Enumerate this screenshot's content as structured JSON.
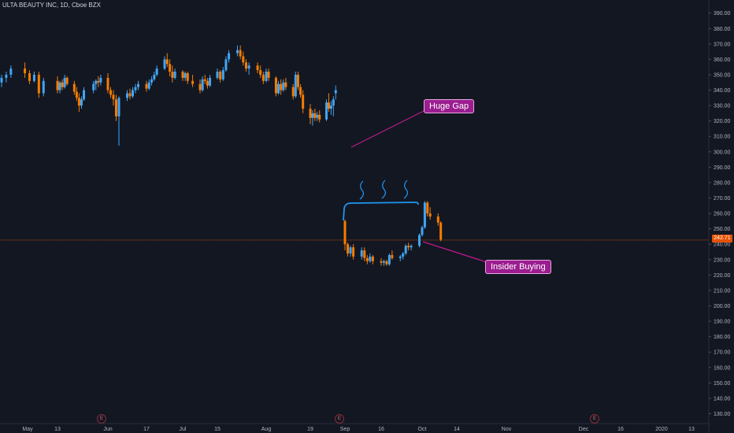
{
  "header": {
    "symbol_title": "ULTA BEAUTY INC, 1D, Cboe BZX"
  },
  "price_scale": {
    "current_price_label": "242.71",
    "current_price_color": "#e65100"
  },
  "annotations": {
    "huge_gap_label": "Huge Gap",
    "insider_buying_label": "Insider Buying",
    "callout_color": "#9b1d8f",
    "earnings_marker_label": "E"
  },
  "colors": {
    "background": "#131722",
    "up_candle": "#42a5f5",
    "down_candle": "#f57c00",
    "axis_text": "#b2b5be",
    "price_line": "#e65100",
    "drawing": "#2196f3",
    "annotation_line": "#c2188f"
  },
  "chart_data": {
    "type": "candlestick",
    "title": "ULTA BEAUTY INC, 1D, Cboe BZX",
    "y_axis": {
      "position": "right",
      "ylim": [
        125,
        393
      ],
      "ticks": [
        390,
        380,
        370,
        360,
        350,
        340,
        330,
        320,
        310,
        300,
        290,
        280,
        270,
        260,
        250,
        240,
        230,
        220,
        210,
        200,
        190,
        180,
        170,
        160,
        150,
        140,
        130
      ]
    },
    "x_axis": {
      "ticks": [
        "May",
        "13",
        "Jun",
        "17",
        "Jul",
        "15",
        "Aug",
        "19",
        "Sep",
        "16",
        "Oct",
        "14",
        "Nov",
        "Dec",
        "16",
        "2020",
        "13"
      ]
    },
    "current_price": 242.71,
    "earnings_dates": [
      "2019-05-30",
      "2019-08-29",
      "2019-12-05"
    ],
    "candles": [
      {
        "date": "2019-05-01",
        "o": 345,
        "h": 350,
        "l": 342,
        "c": 348
      },
      {
        "date": "2019-05-02",
        "o": 348,
        "h": 352,
        "l": 345,
        "c": 350
      },
      {
        "date": "2019-05-03",
        "o": 350,
        "h": 356,
        "l": 348,
        "c": 354
      },
      {
        "date": "2019-05-06",
        "o": 354,
        "h": 358,
        "l": 348,
        "c": 351
      },
      {
        "date": "2019-05-07",
        "o": 351,
        "h": 353,
        "l": 344,
        "c": 346
      },
      {
        "date": "2019-05-08",
        "o": 346,
        "h": 352,
        "l": 345,
        "c": 350
      },
      {
        "date": "2019-05-09",
        "o": 350,
        "h": 352,
        "l": 335,
        "c": 338
      },
      {
        "date": "2019-05-10",
        "o": 338,
        "h": 348,
        "l": 336,
        "c": 346
      },
      {
        "date": "2019-05-13",
        "o": 346,
        "h": 349,
        "l": 338,
        "c": 340
      },
      {
        "date": "2019-05-14",
        "o": 340,
        "h": 346,
        "l": 338,
        "c": 345
      },
      {
        "date": "2019-05-15",
        "o": 345,
        "h": 347,
        "l": 340,
        "c": 342
      },
      {
        "date": "2019-05-16",
        "o": 342,
        "h": 350,
        "l": 341,
        "c": 348
      },
      {
        "date": "2019-05-17",
        "o": 348,
        "h": 349,
        "l": 343,
        "c": 344
      },
      {
        "date": "2019-05-20",
        "o": 344,
        "h": 346,
        "l": 337,
        "c": 339
      },
      {
        "date": "2019-05-21",
        "o": 339,
        "h": 342,
        "l": 333,
        "c": 335
      },
      {
        "date": "2019-05-22",
        "o": 335,
        "h": 338,
        "l": 326,
        "c": 330
      },
      {
        "date": "2019-05-23",
        "o": 330,
        "h": 336,
        "l": 328,
        "c": 334
      },
      {
        "date": "2019-05-24",
        "o": 334,
        "h": 342,
        "l": 333,
        "c": 340
      },
      {
        "date": "2019-05-28",
        "o": 340,
        "h": 346,
        "l": 338,
        "c": 344
      },
      {
        "date": "2019-05-29",
        "o": 344,
        "h": 347,
        "l": 340,
        "c": 346
      },
      {
        "date": "2019-05-30",
        "o": 346,
        "h": 349,
        "l": 342,
        "c": 345
      },
      {
        "date": "2019-05-31",
        "o": 345,
        "h": 350,
        "l": 343,
        "c": 348
      },
      {
        "date": "2019-06-03",
        "o": 348,
        "h": 351,
        "l": 338,
        "c": 340
      },
      {
        "date": "2019-06-04",
        "o": 340,
        "h": 342,
        "l": 335,
        "c": 337
      },
      {
        "date": "2019-06-05",
        "o": 337,
        "h": 340,
        "l": 330,
        "c": 334
      },
      {
        "date": "2019-06-06",
        "o": 334,
        "h": 337,
        "l": 320,
        "c": 323
      },
      {
        "date": "2019-06-07",
        "o": 323,
        "h": 336,
        "l": 304,
        "c": 335
      },
      {
        "date": "2019-06-10",
        "o": 335,
        "h": 340,
        "l": 333,
        "c": 338
      },
      {
        "date": "2019-06-11",
        "o": 338,
        "h": 341,
        "l": 334,
        "c": 336
      },
      {
        "date": "2019-06-12",
        "o": 336,
        "h": 342,
        "l": 335,
        "c": 340
      },
      {
        "date": "2019-06-13",
        "o": 340,
        "h": 344,
        "l": 338,
        "c": 342
      },
      {
        "date": "2019-06-14",
        "o": 342,
        "h": 346,
        "l": 340,
        "c": 344
      },
      {
        "date": "2019-06-17",
        "o": 344,
        "h": 346,
        "l": 339,
        "c": 341
      },
      {
        "date": "2019-06-18",
        "o": 341,
        "h": 347,
        "l": 340,
        "c": 345
      },
      {
        "date": "2019-06-19",
        "o": 345,
        "h": 349,
        "l": 343,
        "c": 347
      },
      {
        "date": "2019-06-20",
        "o": 347,
        "h": 352,
        "l": 346,
        "c": 350
      },
      {
        "date": "2019-06-21",
        "o": 350,
        "h": 356,
        "l": 349,
        "c": 354
      },
      {
        "date": "2019-06-24",
        "o": 354,
        "h": 362,
        "l": 353,
        "c": 360
      },
      {
        "date": "2019-06-25",
        "o": 360,
        "h": 364,
        "l": 355,
        "c": 357
      },
      {
        "date": "2019-06-26",
        "o": 357,
        "h": 360,
        "l": 349,
        "c": 352
      },
      {
        "date": "2019-06-27",
        "o": 352,
        "h": 356,
        "l": 345,
        "c": 348
      },
      {
        "date": "2019-06-28",
        "o": 348,
        "h": 354,
        "l": 347,
        "c": 352
      },
      {
        "date": "2019-07-01",
        "o": 352,
        "h": 353,
        "l": 346,
        "c": 348
      },
      {
        "date": "2019-07-02",
        "o": 348,
        "h": 352,
        "l": 346,
        "c": 351
      },
      {
        "date": "2019-07-03",
        "o": 351,
        "h": 352,
        "l": 344,
        "c": 346
      },
      {
        "date": "2019-07-05",
        "o": 346,
        "h": 350,
        "l": 342,
        "c": 344
      },
      {
        "date": "2019-07-08",
        "o": 344,
        "h": 347,
        "l": 338,
        "c": 340
      },
      {
        "date": "2019-07-09",
        "o": 340,
        "h": 349,
        "l": 339,
        "c": 347
      },
      {
        "date": "2019-07-10",
        "o": 347,
        "h": 350,
        "l": 344,
        "c": 346
      },
      {
        "date": "2019-07-11",
        "o": 346,
        "h": 348,
        "l": 341,
        "c": 343
      },
      {
        "date": "2019-07-12",
        "o": 343,
        "h": 350,
        "l": 342,
        "c": 348
      },
      {
        "date": "2019-07-15",
        "o": 348,
        "h": 354,
        "l": 347,
        "c": 352
      },
      {
        "date": "2019-07-16",
        "o": 352,
        "h": 353,
        "l": 345,
        "c": 347
      },
      {
        "date": "2019-07-17",
        "o": 347,
        "h": 355,
        "l": 346,
        "c": 353
      },
      {
        "date": "2019-07-18",
        "o": 353,
        "h": 362,
        "l": 352,
        "c": 360
      },
      {
        "date": "2019-07-19",
        "o": 360,
        "h": 366,
        "l": 358,
        "c": 364
      },
      {
        "date": "2019-07-22",
        "o": 364,
        "h": 369,
        "l": 362,
        "c": 366
      },
      {
        "date": "2019-07-23",
        "o": 366,
        "h": 369,
        "l": 360,
        "c": 362
      },
      {
        "date": "2019-07-24",
        "o": 362,
        "h": 365,
        "l": 356,
        "c": 358
      },
      {
        "date": "2019-07-25",
        "o": 358,
        "h": 360,
        "l": 352,
        "c": 354
      },
      {
        "date": "2019-07-26",
        "o": 354,
        "h": 358,
        "l": 350,
        "c": 356
      },
      {
        "date": "2019-07-29",
        "o": 356,
        "h": 358,
        "l": 351,
        "c": 353
      },
      {
        "date": "2019-07-30",
        "o": 353,
        "h": 356,
        "l": 348,
        "c": 350
      },
      {
        "date": "2019-07-31",
        "o": 350,
        "h": 352,
        "l": 344,
        "c": 346
      },
      {
        "date": "2019-08-01",
        "o": 346,
        "h": 354,
        "l": 345,
        "c": 352
      },
      {
        "date": "2019-08-02",
        "o": 352,
        "h": 354,
        "l": 346,
        "c": 348
      },
      {
        "date": "2019-08-05",
        "o": 348,
        "h": 349,
        "l": 336,
        "c": 338
      },
      {
        "date": "2019-08-06",
        "o": 338,
        "h": 346,
        "l": 337,
        "c": 344
      },
      {
        "date": "2019-08-07",
        "o": 344,
        "h": 347,
        "l": 337,
        "c": 340
      },
      {
        "date": "2019-08-08",
        "o": 340,
        "h": 347,
        "l": 339,
        "c": 345
      },
      {
        "date": "2019-08-09",
        "o": 345,
        "h": 348,
        "l": 340,
        "c": 342
      },
      {
        "date": "2019-08-12",
        "o": 342,
        "h": 344,
        "l": 334,
        "c": 336
      },
      {
        "date": "2019-08-13",
        "o": 336,
        "h": 352,
        "l": 335,
        "c": 350
      },
      {
        "date": "2019-08-14",
        "o": 350,
        "h": 352,
        "l": 340,
        "c": 342
      },
      {
        "date": "2019-08-15",
        "o": 342,
        "h": 344,
        "l": 335,
        "c": 337
      },
      {
        "date": "2019-08-16",
        "o": 337,
        "h": 340,
        "l": 325,
        "c": 328
      },
      {
        "date": "2019-08-19",
        "o": 328,
        "h": 331,
        "l": 318,
        "c": 322
      },
      {
        "date": "2019-08-20",
        "o": 322,
        "h": 327,
        "l": 317,
        "c": 325
      },
      {
        "date": "2019-08-21",
        "o": 325,
        "h": 328,
        "l": 320,
        "c": 322
      },
      {
        "date": "2019-08-22",
        "o": 322,
        "h": 326,
        "l": 320,
        "c": 324
      },
      {
        "date": "2019-08-23",
        "o": 324,
        "h": 327,
        "l": 319,
        "c": 321
      },
      {
        "date": "2019-08-26",
        "o": 321,
        "h": 334,
        "l": 320,
        "c": 332
      },
      {
        "date": "2019-08-27",
        "o": 332,
        "h": 338,
        "l": 326,
        "c": 328
      },
      {
        "date": "2019-08-28",
        "o": 328,
        "h": 333,
        "l": 324,
        "c": 330
      },
      {
        "date": "2019-08-29",
        "o": 330,
        "h": 336,
        "l": 323,
        "c": 334
      },
      {
        "date": "2019-08-30",
        "o": 338,
        "h": 343,
        "l": 334,
        "c": 340
      },
      {
        "date": "2019-09-03",
        "o": 255,
        "h": 256,
        "l": 236,
        "c": 240
      },
      {
        "date": "2019-09-04",
        "o": 240,
        "h": 241,
        "l": 232,
        "c": 234
      },
      {
        "date": "2019-09-05",
        "o": 234,
        "h": 239,
        "l": 232,
        "c": 238
      },
      {
        "date": "2019-09-06",
        "o": 238,
        "h": 240,
        "l": 230,
        "c": 232
      },
      {
        "date": "2019-09-09",
        "o": 232,
        "h": 238,
        "l": 230,
        "c": 236
      },
      {
        "date": "2019-09-10",
        "o": 236,
        "h": 238,
        "l": 229,
        "c": 231
      },
      {
        "date": "2019-09-11",
        "o": 231,
        "h": 233,
        "l": 227,
        "c": 229
      },
      {
        "date": "2019-09-12",
        "o": 229,
        "h": 234,
        "l": 228,
        "c": 232
      },
      {
        "date": "2019-09-13",
        "o": 232,
        "h": 233,
        "l": 227,
        "c": 229
      },
      {
        "date": "2019-09-16",
        "o": 229,
        "h": 231,
        "l": 226,
        "c": 228
      },
      {
        "date": "2019-09-17",
        "o": 228,
        "h": 230,
        "l": 226,
        "c": 229
      },
      {
        "date": "2019-09-18",
        "o": 229,
        "h": 230,
        "l": 226,
        "c": 227
      },
      {
        "date": "2019-09-19",
        "o": 227,
        "h": 234,
        "l": 226,
        "c": 233
      },
      {
        "date": "2019-09-20",
        "o": 233,
        "h": 236,
        "l": 230,
        "c": 231
      },
      {
        "date": "2019-09-23",
        "o": 231,
        "h": 233,
        "l": 229,
        "c": 232
      },
      {
        "date": "2019-09-24",
        "o": 232,
        "h": 235,
        "l": 230,
        "c": 234
      },
      {
        "date": "2019-09-25",
        "o": 234,
        "h": 240,
        "l": 233,
        "c": 239
      },
      {
        "date": "2019-09-26",
        "o": 239,
        "h": 241,
        "l": 236,
        "c": 238
      },
      {
        "date": "2019-09-27",
        "o": 238,
        "h": 240,
        "l": 236,
        "c": 239
      },
      {
        "date": "2019-09-30",
        "o": 239,
        "h": 247,
        "l": 238,
        "c": 246
      },
      {
        "date": "2019-10-01",
        "o": 246,
        "h": 252,
        "l": 245,
        "c": 251
      },
      {
        "date": "2019-10-02",
        "o": 251,
        "h": 268,
        "l": 250,
        "c": 267
      },
      {
        "date": "2019-10-03",
        "o": 267,
        "h": 268,
        "l": 258,
        "c": 260
      },
      {
        "date": "2019-10-04",
        "o": 260,
        "h": 264,
        "l": 256,
        "c": 258
      },
      {
        "date": "2019-10-07",
        "o": 258,
        "h": 260,
        "l": 252,
        "c": 254
      },
      {
        "date": "2019-10-08",
        "o": 254,
        "h": 255,
        "l": 242,
        "c": 243
      }
    ]
  }
}
